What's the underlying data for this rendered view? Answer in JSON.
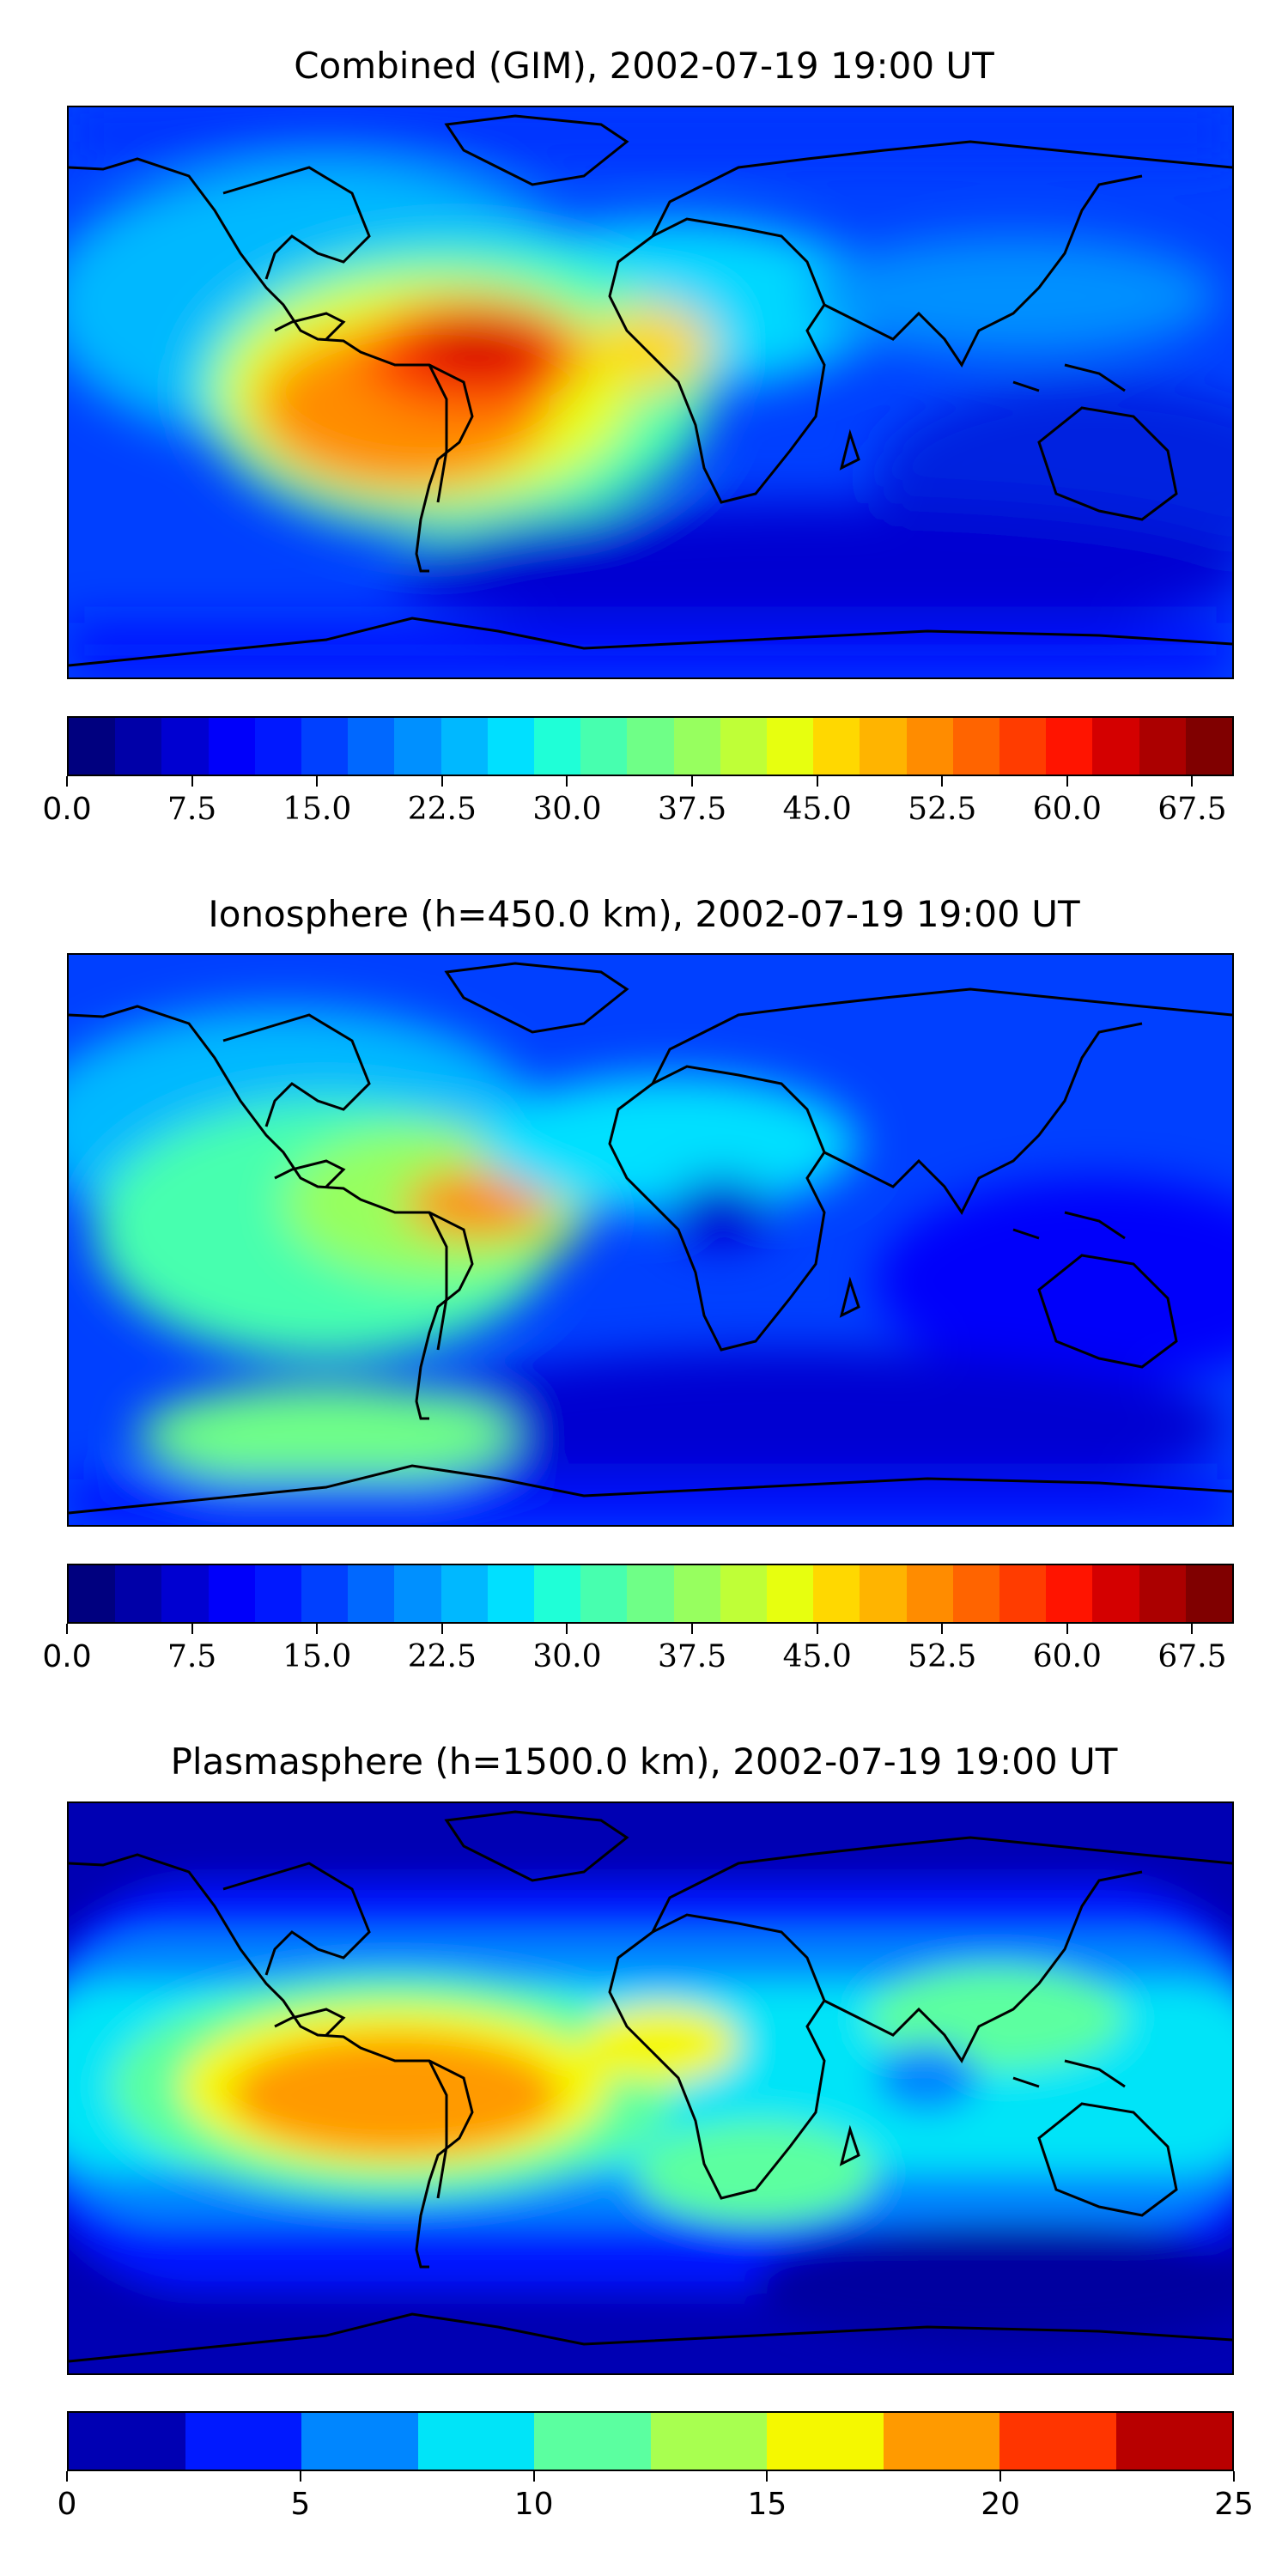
{
  "panels": [
    {
      "title": "Combined (GIM), 2002-07-19 19:00 UT",
      "colorbar": {
        "colors": [
          "#00007f",
          "#0000a8",
          "#0000d1",
          "#0000fa",
          "#0018ff",
          "#0040ff",
          "#0068ff",
          "#0090ff",
          "#00b8ff",
          "#00e0ff",
          "#1fffd7",
          "#47ffaf",
          "#6fff87",
          "#97ff5f",
          "#bfff37",
          "#e7ff0f",
          "#ffd800",
          "#ffb400",
          "#ff8c00",
          "#ff6400",
          "#ff3c00",
          "#ff1400",
          "#d40000",
          "#ab0000",
          "#800000"
        ],
        "ticks": [
          "0.0",
          "7.5",
          "15.0",
          "22.5",
          "30.0",
          "37.5",
          "45.0",
          "52.5",
          "60.0",
          "67.5"
        ]
      }
    },
    {
      "title": "Ionosphere  (h=450.0 km), 2002-07-19 19:00 UT",
      "colorbar": {
        "colors": [
          "#00007f",
          "#0000a8",
          "#0000d1",
          "#0000fa",
          "#0018ff",
          "#0040ff",
          "#0068ff",
          "#0090ff",
          "#00b8ff",
          "#00e0ff",
          "#1fffd7",
          "#47ffaf",
          "#6fff87",
          "#97ff5f",
          "#bfff37",
          "#e7ff0f",
          "#ffd800",
          "#ffb400",
          "#ff8c00",
          "#ff6400",
          "#ff3c00",
          "#ff1400",
          "#d40000",
          "#ab0000",
          "#800000"
        ],
        "ticks": [
          "0.0",
          "7.5",
          "15.0",
          "22.5",
          "30.0",
          "37.5",
          "45.0",
          "52.5",
          "60.0",
          "67.5"
        ]
      }
    },
    {
      "title": "Plasmasphere (h=1500.0 km), 2002-07-19 19:00 UT",
      "colorbar": {
        "colors": [
          "#0000b3",
          "#0019ff",
          "#0086ff",
          "#00e4f8",
          "#5bffa0",
          "#a8ff50",
          "#f5f800",
          "#ff9a00",
          "#ff3500",
          "#b80000"
        ],
        "ticks": [
          "0",
          "5",
          "10",
          "15",
          "20",
          "25"
        ]
      }
    }
  ]
}
